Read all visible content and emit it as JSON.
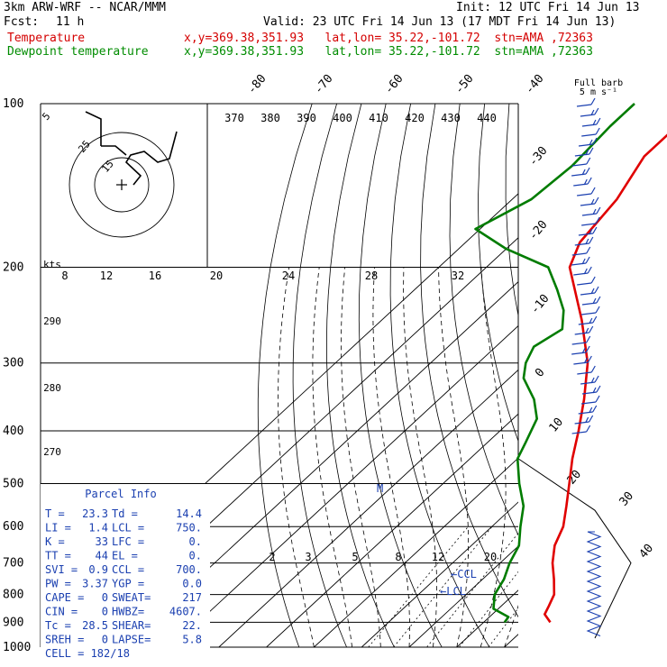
{
  "header": {
    "model": "3km ARW-WRF -- NCAR/MMM",
    "init": "Init: 12 UTC Fri 14 Jun 13",
    "fcst_label": "Fcst:",
    "fcst_value": "11 h",
    "valid": "Valid: 23 UTC Fri 14 Jun 13 (17 MDT Fri 14 Jun 13)",
    "temp_label": "Temperature",
    "dew_label": "Dewpoint temperature",
    "temp_loc": "x,y=369.38,351.93   lat,lon= 35.22,-101.72  stn=AMA ,72363",
    "dew_loc": "x,y=369.38,351.93   lat,lon= 35.22,-101.72  stn=AMA ,72363"
  },
  "colors": {
    "temperature": "#e00000",
    "dewpoint": "#007c00",
    "parcel_text": "#1a3fb0",
    "barbs": "#1a3fb0",
    "lines": "#000000"
  },
  "chart_data": {
    "type": "skew-t",
    "pressure_levels": [
      "100",
      "200",
      "300",
      "400",
      "500",
      "600",
      "700",
      "800",
      "900",
      "1000"
    ],
    "pressure_range_hpa": [
      1000,
      100
    ],
    "isotherm_labels": [
      "-80",
      "-70",
      "-60",
      "-50",
      "-40",
      "-30",
      "-20",
      "-10",
      "0",
      "10",
      "20",
      "30",
      "40"
    ],
    "isotherms_c": [
      -80,
      -70,
      -60,
      -50,
      -40,
      -30,
      -20,
      -10,
      0,
      10,
      20,
      30,
      40
    ],
    "theta_labels": [
      "370",
      "380",
      "390",
      "400",
      "410",
      "420",
      "430",
      "440"
    ],
    "theta_small_labels": [
      "290",
      "280",
      "270"
    ],
    "mixing_ratio_upper_labels": [
      "8",
      "12",
      "16",
      "20",
      "24",
      "28",
      "32"
    ],
    "mixing_ratio_lower_labels": [
      "2",
      "3",
      "5",
      "8",
      "12",
      "20"
    ],
    "temperature_profile": [
      {
        "p": 900,
        "t": 24.0
      },
      {
        "p": 870,
        "t": 21.0
      },
      {
        "p": 840,
        "t": 20.0
      },
      {
        "p": 800,
        "t": 18.5
      },
      {
        "p": 750,
        "t": 15.0
      },
      {
        "p": 700,
        "t": 11.0
      },
      {
        "p": 650,
        "t": 7.5
      },
      {
        "p": 600,
        "t": 5.0
      },
      {
        "p": 550,
        "t": 1.0
      },
      {
        "p": 500,
        "t": -3.5
      },
      {
        "p": 450,
        "t": -8.5
      },
      {
        "p": 400,
        "t": -13.5
      },
      {
        "p": 350,
        "t": -19.5
      },
      {
        "p": 300,
        "t": -27.0
      },
      {
        "p": 250,
        "t": -38.0
      },
      {
        "p": 200,
        "t": -52.5
      },
      {
        "p": 180,
        "t": -56.0
      },
      {
        "p": 150,
        "t": -58.0
      },
      {
        "p": 125,
        "t": -62.0
      },
      {
        "p": 110,
        "t": -62.0
      },
      {
        "p": 100,
        "t": -59.0
      }
    ],
    "dewpoint_profile": [
      {
        "p": 900,
        "t": 14.4
      },
      {
        "p": 880,
        "t": 14.0
      },
      {
        "p": 850,
        "t": 9.0
      },
      {
        "p": 800,
        "t": 6.0
      },
      {
        "p": 750,
        "t": 4.5
      },
      {
        "p": 700,
        "t": 2.0
      },
      {
        "p": 650,
        "t": 0.0
      },
      {
        "p": 600,
        "t": -4.0
      },
      {
        "p": 550,
        "t": -8.0
      },
      {
        "p": 500,
        "t": -14.0
      },
      {
        "p": 450,
        "t": -20.0
      },
      {
        "p": 420,
        "t": -22.0
      },
      {
        "p": 380,
        "t": -25.0
      },
      {
        "p": 350,
        "t": -30.0
      },
      {
        "p": 320,
        "t": -37.0
      },
      {
        "p": 300,
        "t": -40.0
      },
      {
        "p": 280,
        "t": -42.0
      },
      {
        "p": 260,
        "t": -40.0
      },
      {
        "p": 240,
        "t": -44.0
      },
      {
        "p": 220,
        "t": -50.0
      },
      {
        "p": 200,
        "t": -57.0
      },
      {
        "p": 185,
        "t": -70.0
      },
      {
        "p": 170,
        "t": -81.0
      },
      {
        "p": 150,
        "t": -76.0
      },
      {
        "p": 130,
        "t": -75.0
      },
      {
        "p": 110,
        "t": -76.0
      },
      {
        "p": 100,
        "t": -76.0
      }
    ],
    "markers": {
      "lcl": "LCL",
      "ccl": "CCL",
      "m": "M"
    },
    "wind_box": {
      "title": "Full barb",
      "subtitle": "5 m s⁻¹"
    },
    "hodograph": {
      "kts_label": "kts",
      "ring_labels": [
        "5",
        "25",
        "15"
      ]
    }
  },
  "parcel_info": {
    "title": "Parcel Info",
    "rows": [
      [
        "T  =",
        "23.3",
        "Td =",
        "14.4"
      ],
      [
        "LI =",
        "1.4",
        "LCL =",
        "750."
      ],
      [
        "K  =",
        "33",
        "LFC =",
        "0."
      ],
      [
        "TT =",
        "44",
        "EL =",
        "0."
      ],
      [
        "SVI =",
        "0.9",
        "CCL =",
        "700."
      ],
      [
        "PW =",
        "3.37",
        "YGP =",
        "0.0"
      ],
      [
        "CAPE =",
        "0",
        "SWEAT=",
        "217"
      ],
      [
        "CIN =",
        "0",
        "HWBZ=",
        "4607."
      ],
      [
        "Tc =",
        "28.5",
        "SHEAR=",
        "22."
      ],
      [
        "SREH =",
        "0",
        "LAPSE=",
        "5.8"
      ]
    ],
    "cell": "CELL = 182/18"
  }
}
